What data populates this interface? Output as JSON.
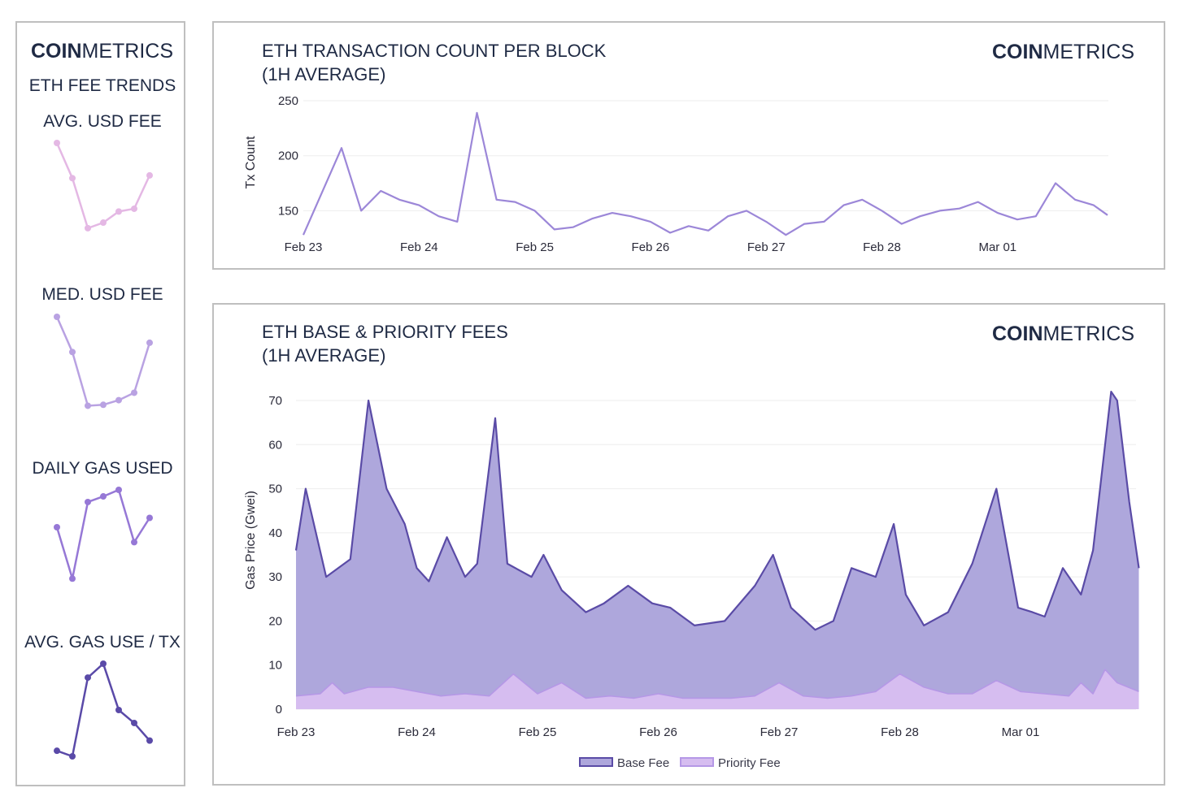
{
  "brand": {
    "bold": "COIN",
    "light": "METRICS"
  },
  "sidebar": {
    "heading": "ETH FEE TRENDS",
    "sparklines": [
      {
        "title": "AVG. USD FEE",
        "color": "#e4b8e4",
        "values": [
          1.0,
          0.62,
          0.08,
          0.14,
          0.26,
          0.29,
          0.65
        ]
      },
      {
        "title": "MED. USD FEE",
        "color": "#b9a2e2",
        "values": [
          1.0,
          0.62,
          0.04,
          0.05,
          0.1,
          0.18,
          0.72
        ]
      },
      {
        "title": "DAILY GAS USED",
        "color": "#9678d6",
        "values": [
          0.6,
          0.05,
          0.87,
          0.93,
          1.0,
          0.44,
          0.7
        ]
      },
      {
        "title": "AVG. GAS USE / TX",
        "color": "#5a4aa8",
        "values": [
          0.06,
          0.0,
          0.85,
          1.0,
          0.5,
          0.36,
          0.17
        ]
      }
    ]
  },
  "tx_chart": {
    "title_line1": "ETH TRANSACTION COUNT PER BLOCK",
    "title_line2": "(1H AVERAGE)"
  },
  "fee_chart": {
    "title_line1": "ETH BASE & PRIORITY FEES",
    "title_line2": "(1H AVERAGE)"
  },
  "colors": {
    "tx_line": "#9c87d8",
    "base_fill": "#aea7dc",
    "base_line": "#5a4ba6",
    "priority_fill": "#d6bdf0",
    "priority_line": "#b598e6",
    "grid": "#eeeeee"
  },
  "chart_data": [
    {
      "type": "line",
      "title": "ETH TRANSACTION COUNT PER BLOCK (1H AVERAGE)",
      "xlabel": "",
      "ylabel": "Tx Count",
      "ylim": [
        120,
        250
      ],
      "yticks": [
        150,
        200,
        250
      ],
      "x_ticks": [
        "Feb 23",
        "Feb 24",
        "Feb 25",
        "Feb 26",
        "Feb 27",
        "Feb 28",
        "Mar 01"
      ],
      "x_range_days": [
        0,
        7
      ],
      "grid": true,
      "series": [
        {
          "name": "Tx Count",
          "x": [
            0,
            0.33,
            0.5,
            0.67,
            0.83,
            1,
            1.17,
            1.33,
            1.5,
            1.67,
            1.83,
            2,
            2.17,
            2.33,
            2.5,
            2.67,
            2.83,
            3,
            3.17,
            3.33,
            3.5,
            3.67,
            3.83,
            4,
            4.17,
            4.33,
            4.5,
            4.67,
            4.83,
            5,
            5.17,
            5.33,
            5.5,
            5.67,
            5.83,
            6,
            6.17,
            6.33,
            6.5,
            6.67,
            6.83,
            6.95
          ],
          "values": [
            128,
            207,
            150,
            168,
            160,
            155,
            145,
            140,
            239,
            160,
            158,
            150,
            133,
            135,
            143,
            148,
            145,
            140,
            130,
            136,
            132,
            145,
            150,
            140,
            128,
            138,
            140,
            155,
            160,
            150,
            138,
            145,
            150,
            152,
            158,
            148,
            142,
            145,
            175,
            160,
            155,
            146
          ]
        }
      ]
    },
    {
      "type": "area",
      "title": "ETH BASE & PRIORITY FEES (1H AVERAGE)",
      "xlabel": "",
      "ylabel": "Gas Price (Gwei)",
      "ylim": [
        0,
        70
      ],
      "yticks": [
        0,
        10,
        20,
        30,
        40,
        50,
        60,
        70
      ],
      "x_ticks": [
        "Feb 23",
        "Feb 24",
        "Feb 25",
        "Feb 26",
        "Feb 27",
        "Feb 28",
        "Mar 01"
      ],
      "x_range_days": [
        0,
        7
      ],
      "grid": true,
      "legend": "bottom-center",
      "series": [
        {
          "name": "Base Fee",
          "x": [
            0,
            0.08,
            0.25,
            0.45,
            0.6,
            0.75,
            0.9,
            1.0,
            1.1,
            1.25,
            1.4,
            1.5,
            1.65,
            1.75,
            1.95,
            2.05,
            2.2,
            2.4,
            2.55,
            2.75,
            2.95,
            3.1,
            3.3,
            3.55,
            3.8,
            3.95,
            4.1,
            4.3,
            4.45,
            4.6,
            4.8,
            4.95,
            5.05,
            5.2,
            5.4,
            5.6,
            5.8,
            5.98,
            6.1,
            6.2,
            6.35,
            6.5,
            6.6,
            6.75,
            6.8,
            6.9,
            6.98
          ],
          "values": [
            36,
            50,
            30,
            34,
            70,
            50,
            42,
            32,
            29,
            39,
            30,
            33,
            66,
            33,
            30,
            35,
            27,
            22,
            24,
            28,
            24,
            23,
            19,
            20,
            28,
            35,
            23,
            18,
            20,
            32,
            30,
            42,
            26,
            19,
            22,
            33,
            50,
            23,
            22,
            21,
            32,
            26,
            36,
            72,
            70,
            47,
            32
          ]
        },
        {
          "name": "Priority Fee",
          "x": [
            0,
            0.2,
            0.3,
            0.4,
            0.6,
            0.8,
            1.0,
            1.2,
            1.4,
            1.6,
            1.8,
            2.0,
            2.2,
            2.4,
            2.6,
            2.8,
            3.0,
            3.2,
            3.4,
            3.6,
            3.8,
            4.0,
            4.2,
            4.4,
            4.6,
            4.8,
            5.0,
            5.2,
            5.4,
            5.6,
            5.8,
            6.0,
            6.2,
            6.4,
            6.5,
            6.6,
            6.7,
            6.8,
            6.98
          ],
          "values": [
            3,
            3.5,
            6,
            3.5,
            5,
            5,
            4,
            3,
            3.5,
            3,
            8,
            3.5,
            6,
            2.5,
            3,
            2.5,
            3.5,
            2.5,
            2.5,
            2.5,
            3,
            6,
            3,
            2.5,
            3,
            4,
            8,
            5,
            3.5,
            3.5,
            6.5,
            4,
            3.5,
            3,
            6,
            3.5,
            9,
            6,
            4
          ]
        }
      ]
    }
  ]
}
